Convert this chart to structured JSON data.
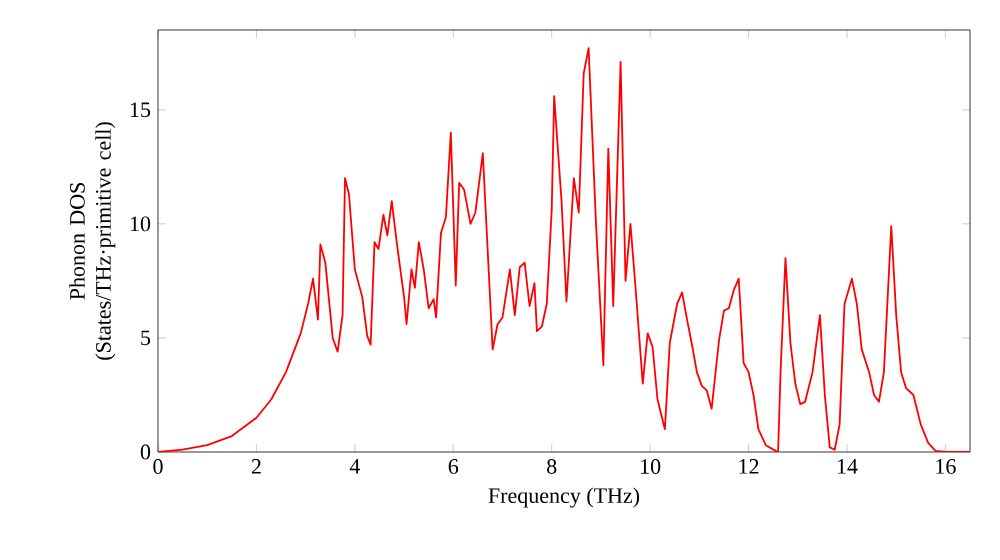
{
  "chart_data": {
    "type": "line",
    "xlabel": "Frequency (THz)",
    "ylabel": "Phonon DOS (States/THz·primitive cell)",
    "xlim": [
      0,
      16.5
    ],
    "ylim": [
      0,
      18.5
    ],
    "xticks": [
      0,
      2,
      4,
      6,
      8,
      10,
      12,
      14,
      16
    ],
    "yticks": [
      0,
      5,
      10,
      15
    ],
    "grid": false,
    "series": [
      {
        "color": "#ff0000",
        "x": [
          0,
          0.5,
          1,
          1.5,
          2,
          2.3,
          2.6,
          2.9,
          3.05,
          3.15,
          3.25,
          3.3,
          3.4,
          3.55,
          3.65,
          3.75,
          3.8,
          3.88,
          4.0,
          4.15,
          4.25,
          4.32,
          4.4,
          4.48,
          4.58,
          4.66,
          4.75,
          4.85,
          5.0,
          5.05,
          5.15,
          5.22,
          5.3,
          5.4,
          5.5,
          5.6,
          5.65,
          5.75,
          5.85,
          5.95,
          6.05,
          6.12,
          6.22,
          6.35,
          6.45,
          6.6,
          6.8,
          6.9,
          7.0,
          7.15,
          7.25,
          7.35,
          7.45,
          7.55,
          7.65,
          7.7,
          7.8,
          7.9,
          8.0,
          8.05,
          8.2,
          8.3,
          8.45,
          8.55,
          8.65,
          8.75,
          8.9,
          9.05,
          9.15,
          9.25,
          9.4,
          9.5,
          9.6,
          9.7,
          9.85,
          9.95,
          10.05,
          10.15,
          10.3,
          10.4,
          10.55,
          10.65,
          10.75,
          10.85,
          10.95,
          11.05,
          11.15,
          11.25,
          11.4,
          11.5,
          11.6,
          11.7,
          11.8,
          11.9,
          12.0,
          12.1,
          12.2,
          12.35,
          12.55,
          12.6,
          12.65,
          12.75,
          12.85,
          12.95,
          13.05,
          13.15,
          13.3,
          13.45,
          13.55,
          13.65,
          13.75,
          13.85,
          13.95,
          14.1,
          14.2,
          14.3,
          14.45,
          14.55,
          14.65,
          14.75,
          14.9,
          15.0,
          15.1,
          15.2,
          15.35,
          15.5,
          15.65,
          15.8,
          16.0,
          16.5
        ],
        "values": [
          0,
          0.1,
          0.3,
          0.7,
          1.5,
          2.3,
          3.5,
          5.2,
          6.5,
          7.6,
          5.8,
          9.1,
          8.3,
          5.0,
          4.4,
          6.0,
          12.0,
          11.3,
          8.0,
          6.8,
          5.1,
          4.7,
          9.2,
          8.9,
          10.4,
          9.5,
          11.0,
          9.2,
          6.8,
          5.6,
          8.0,
          7.2,
          9.2,
          8.0,
          6.3,
          6.7,
          5.9,
          9.6,
          10.3,
          14.0,
          7.3,
          11.8,
          11.5,
          10.0,
          10.5,
          13.1,
          4.5,
          5.6,
          5.9,
          8.0,
          6.0,
          8.1,
          8.3,
          6.4,
          7.4,
          5.3,
          5.5,
          6.5,
          10.6,
          15.6,
          11.0,
          6.6,
          12.0,
          10.5,
          16.6,
          17.7,
          10.0,
          3.8,
          13.3,
          6.4,
          17.1,
          7.5,
          10.0,
          7.3,
          3.0,
          5.2,
          4.6,
          2.3,
          1.0,
          4.8,
          6.5,
          7.0,
          5.8,
          4.7,
          3.5,
          2.9,
          2.7,
          1.9,
          4.9,
          6.2,
          6.3,
          7.1,
          7.6,
          3.9,
          3.5,
          2.5,
          1.0,
          0.3,
          0.05,
          0,
          3.5,
          8.5,
          4.8,
          3.0,
          2.1,
          2.2,
          3.5,
          6.0,
          2.5,
          0.2,
          0.1,
          1.2,
          6.5,
          7.6,
          6.5,
          4.5,
          3.5,
          2.5,
          2.2,
          3.5,
          9.9,
          6.0,
          3.5,
          2.8,
          2.5,
          1.2,
          0.4,
          0.05,
          0,
          0
        ]
      }
    ]
  }
}
